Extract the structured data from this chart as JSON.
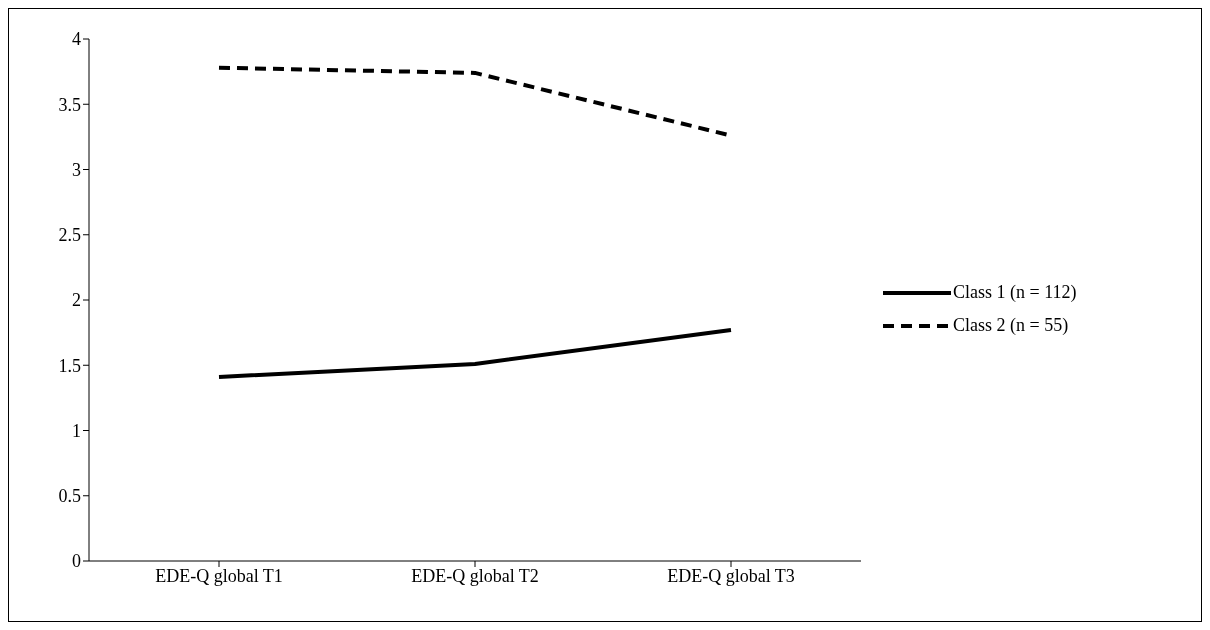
{
  "chart_data": {
    "type": "line",
    "categories": [
      "EDE-Q global T1",
      "EDE-Q global T2",
      "EDE-Q global T3"
    ],
    "series": [
      {
        "name": "Class 1 (n = 112)",
        "color": "#000000",
        "line_style": "solid",
        "values": [
          1.41,
          1.51,
          1.77
        ]
      },
      {
        "name": "Class 2 (n = 55)",
        "color": "#000000",
        "line_style": "dashed",
        "values": [
          3.78,
          3.74,
          3.26
        ]
      }
    ],
    "ylim": [
      0,
      4
    ],
    "yticks": [
      0,
      0.5,
      1,
      1.5,
      2,
      2.5,
      3,
      3.5,
      4
    ],
    "grid": false,
    "legend": "right",
    "marker": "none"
  }
}
